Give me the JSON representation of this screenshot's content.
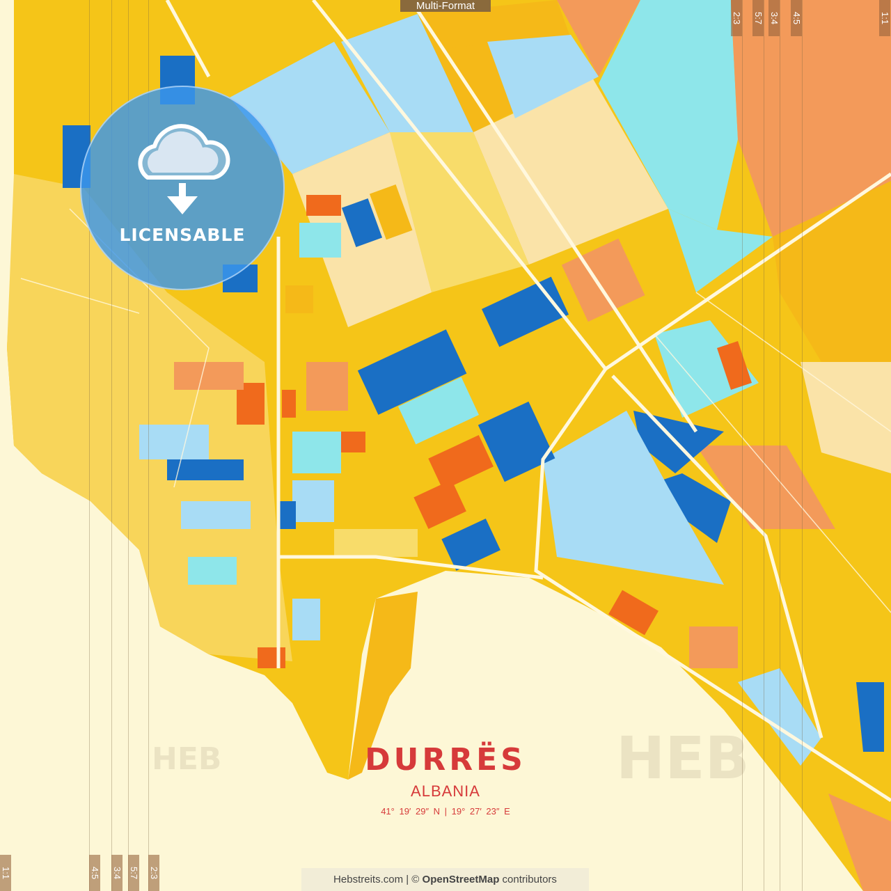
{
  "overlay": {
    "top_label": "Multi-Format",
    "badge_label": "LICENSABLE",
    "badge_icon": "cloud-download-icon",
    "ratio_tags_top": [
      "2:3",
      "5:7",
      "3:4",
      "4:5",
      "1:1"
    ],
    "ratio_tags_bottom": [
      "1:1",
      "4:5",
      "3:4",
      "5:7",
      "2:3"
    ],
    "watermark": "HEB"
  },
  "poster": {
    "city": "DURRËS",
    "country": "ALBANIA",
    "coordinates": "41° 19′ 29″ N | 19° 27′ 23″ E"
  },
  "footer": {
    "site": "Hebstreits.com",
    "separator": " | © ",
    "osm": "OpenStreetMap",
    "suffix": " contributors"
  },
  "colors": {
    "sea": "#fdf7d6",
    "land": "#f5c518",
    "land_light": "#f8dc6a",
    "orange": "#f39a5a",
    "red_orange": "#f06a1c",
    "blue": "#1a6fc4",
    "sky": "#a8dcf5",
    "cyan": "#8ee6ea",
    "title": "#d63a3a"
  }
}
